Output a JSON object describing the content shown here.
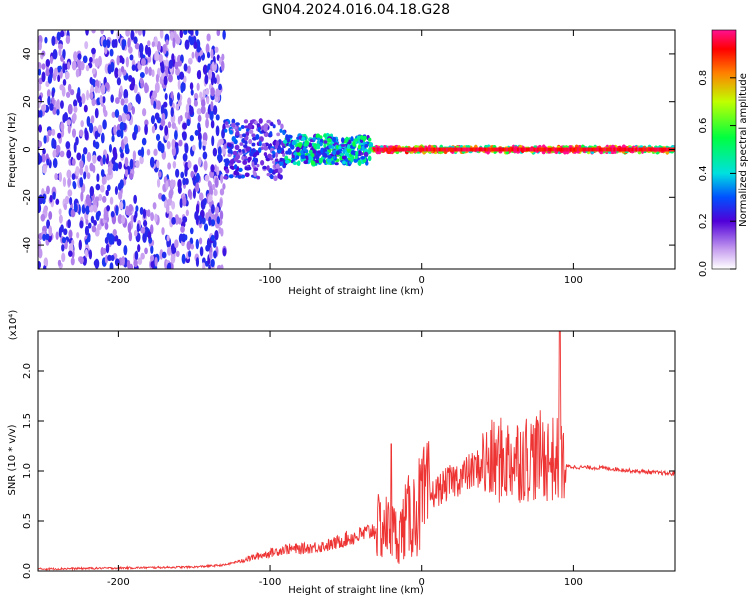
{
  "title": "GN04.2024.016.04.18.G28",
  "chart_data": [
    {
      "type": "heatmap",
      "xlabel": "Height of straight line (km)",
      "ylabel": "Frequency (Hz)",
      "xlim": [
        -253,
        167
      ],
      "ylim": [
        -50,
        50
      ],
      "xticks": [
        -200,
        -100,
        0,
        100
      ],
      "xtick_labels": [
        "-200",
        "-100",
        "0",
        "100"
      ],
      "yticks": [
        -40,
        -20,
        0,
        20,
        40
      ],
      "ytick_labels": [
        "-40",
        "-20",
        "0",
        "20",
        "40"
      ],
      "colorbar": {
        "label": "Normalized spectral amplitude",
        "range": [
          0,
          1
        ],
        "ticks": [
          0.0,
          0.2,
          0.4,
          0.6,
          0.8
        ],
        "tick_labels": [
          "0.0",
          "0.2",
          "0.4",
          "0.6",
          "0.8"
        ]
      },
      "regions": [
        {
          "x": [
            -253,
            -130
          ],
          "freq_spread": 50,
          "amplitude": 0.05
        },
        {
          "x": [
            -130,
            -90
          ],
          "freq_spread": 12,
          "amplitude": 0.25
        },
        {
          "x": [
            -90,
            -33
          ],
          "freq_spread": 6,
          "amplitude": 0.45
        },
        {
          "x": [
            -32,
            167
          ],
          "freq_spread": 1,
          "amplitude": 0.95
        }
      ]
    },
    {
      "type": "line",
      "xlabel": "Height of straight line (km)",
      "ylabel": "SNR (10 * v/v)",
      "y_multiplier": "(x10⁴)",
      "xlim": [
        -253,
        167
      ],
      "ylim": [
        0,
        2.4
      ],
      "xticks": [
        -200,
        -100,
        0,
        100
      ],
      "xtick_labels": [
        "-200",
        "-100",
        "0",
        "100"
      ],
      "yticks": [
        0.0,
        0.5,
        1.0,
        1.5,
        2.0
      ],
      "ytick_labels": [
        "0.0",
        "0.5",
        "1.0",
        "1.5",
        "2.0"
      ],
      "color": "#ee3333",
      "series": [
        {
          "x": [
            -253,
            -200,
            -150,
            -130,
            -120,
            -100,
            -90,
            -80,
            -70,
            -60,
            -50,
            -40,
            -30,
            -25,
            -20,
            -15,
            -10,
            -5,
            0,
            10,
            20,
            30,
            40,
            50,
            60,
            70,
            80,
            85,
            90,
            93,
            95,
            100,
            120,
            140,
            167
          ],
          "y": [
            0.02,
            0.03,
            0.04,
            0.06,
            0.1,
            0.18,
            0.22,
            0.22,
            0.24,
            0.26,
            0.32,
            0.36,
            0.42,
            0.45,
            0.4,
            0.35,
            0.52,
            0.58,
            0.68,
            0.8,
            0.9,
            0.97,
            1.05,
            1.1,
            1.12,
            1.14,
            1.15,
            1.12,
            1.1,
            1.08,
            1.05,
            1.04,
            1.03,
            1.0,
            0.97
          ]
        }
      ]
    }
  ]
}
